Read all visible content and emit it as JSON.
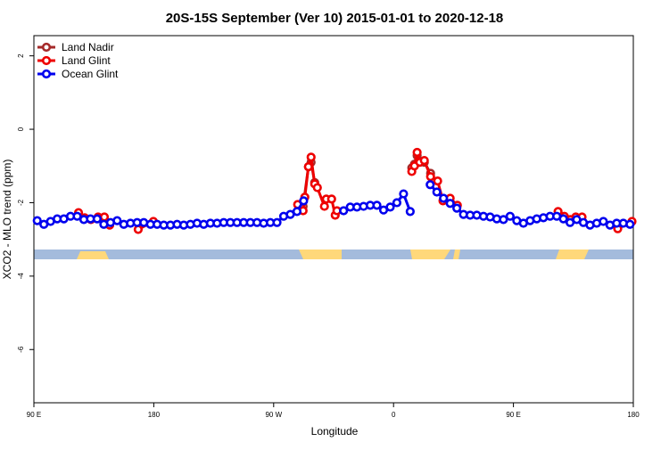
{
  "chart_data": {
    "type": "line",
    "title": "20S-15S September (Ver 10)   2015-01-01 to 2020-12-18",
    "x_label": "Longitude",
    "y_label": "XCO2 - MLO trend (ppm)",
    "xlim": [
      90,
      540
    ],
    "xticks": [
      {
        "value": 90,
        "label": "90 E"
      },
      180,
      {
        "value": 270,
        "label": "90 W"
      },
      {
        "value": 360,
        "label": "0"
      },
      {
        "value": 450,
        "label": "90 E"
      },
      {
        "value": 540,
        "label": "180"
      }
    ],
    "ylim": [
      -7.45,
      2.55
    ],
    "yticks": [
      -6,
      -4,
      -2,
      0,
      2
    ],
    "legend": "top-left",
    "series": [
      {
        "name": "Land Nadir",
        "color": "#a52a2a",
        "x": [
          292.1,
          296.1,
          298.1,
          300.8,
          373.7,
          375.7,
          377.7,
          383.1,
          387.8
        ],
        "values": [
          -2.1,
          -1.02,
          -0.9,
          -1.45,
          -1.05,
          -0.95,
          -0.72,
          -0.9,
          -1.2
        ]
      },
      {
        "name": "Land Glint",
        "color": "#ee0000",
        "x": [
          123.5,
          128.1,
          132.8,
          138.2,
          142.9,
          146.9,
          168.3,
          179.7,
          288,
          292.1,
          293.4,
          296.1,
          298.1,
          300.8,
          302.8,
          308.1,
          309.5,
          313.5,
          316.2,
          317.5,
          373.7,
          375.7,
          377.7,
          379.7,
          383.1,
          387.8,
          393.1,
          397.1,
          402.5,
          407.9,
          483.5,
          488.2,
          492.8,
          496.8,
          501.5,
          528.3,
          539
        ],
        "values": [
          -2.27,
          -2.41,
          -2.46,
          -2.39,
          -2.39,
          -2.61,
          -2.73,
          -2.51,
          -2.05,
          -2.22,
          -1.85,
          -1.02,
          -0.76,
          -1.49,
          -1.59,
          -2.1,
          -1.9,
          -1.9,
          -2.34,
          -2.22,
          -1.15,
          -1.0,
          -0.63,
          -0.9,
          -0.85,
          -1.29,
          -1.41,
          -1.95,
          -1.88,
          -2.07,
          -2.24,
          -2.37,
          -2.46,
          -2.39,
          -2.39,
          -2.71,
          -2.51
        ]
      },
      {
        "name": "Ocean Glint",
        "color": "#0000ee",
        "x": [
          92.5,
          97.5,
          102.5,
          107.5,
          112.5,
          117.5,
          122.5,
          127.5,
          132.5,
          137.5,
          142.5,
          147.5,
          152.5,
          157.5,
          162.5,
          167.5,
          172.5,
          177.5,
          182.5,
          187.5,
          192.5,
          197.5,
          202.5,
          207.5,
          212.5,
          217.5,
          222.5,
          227.5,
          232.5,
          237.5,
          242.5,
          247.5,
          252.5,
          257.5,
          262.5,
          267.5,
          272.5,
          277.5,
          282.5,
          287.5,
          292.5,
          322.5,
          327.5,
          332.5,
          337.5,
          342.5,
          347.5,
          352.5,
          357.5,
          362.5,
          367.5,
          372.5,
          387.5,
          392.5,
          397.5,
          402.5,
          407.5,
          412.5,
          417.5,
          422.5,
          427.5,
          432.5,
          437.5,
          442.5,
          447.5,
          452.5,
          457.5,
          462.5,
          467.5,
          472.5,
          477.5,
          482.5,
          487.5,
          492.5,
          497.5,
          502.5,
          507.5,
          512.5,
          517.5,
          522.5,
          527.5,
          532.5,
          537.5
        ],
        "values": [
          -2.49,
          -2.59,
          -2.51,
          -2.44,
          -2.44,
          -2.37,
          -2.37,
          -2.46,
          -2.44,
          -2.44,
          -2.59,
          -2.54,
          -2.49,
          -2.59,
          -2.56,
          -2.54,
          -2.54,
          -2.59,
          -2.59,
          -2.61,
          -2.61,
          -2.59,
          -2.61,
          -2.59,
          -2.56,
          -2.59,
          -2.56,
          -2.56,
          -2.54,
          -2.54,
          -2.54,
          -2.54,
          -2.54,
          -2.54,
          -2.56,
          -2.54,
          -2.54,
          -2.37,
          -2.32,
          -2.24,
          -1.95,
          -2.22,
          -2.12,
          -2.12,
          -2.1,
          -2.07,
          -2.07,
          -2.2,
          -2.12,
          -2.0,
          -1.76,
          -2.24,
          -1.51,
          -1.71,
          -1.88,
          -2.02,
          -2.15,
          -2.32,
          -2.34,
          -2.34,
          -2.37,
          -2.39,
          -2.44,
          -2.46,
          -2.37,
          -2.49,
          -2.56,
          -2.49,
          -2.44,
          -2.41,
          -2.37,
          -2.37,
          -2.44,
          -2.54,
          -2.46,
          -2.54,
          -2.61,
          -2.56,
          -2.51,
          -2.61,
          -2.56,
          -2.56,
          -2.59
        ]
      }
    ]
  }
}
